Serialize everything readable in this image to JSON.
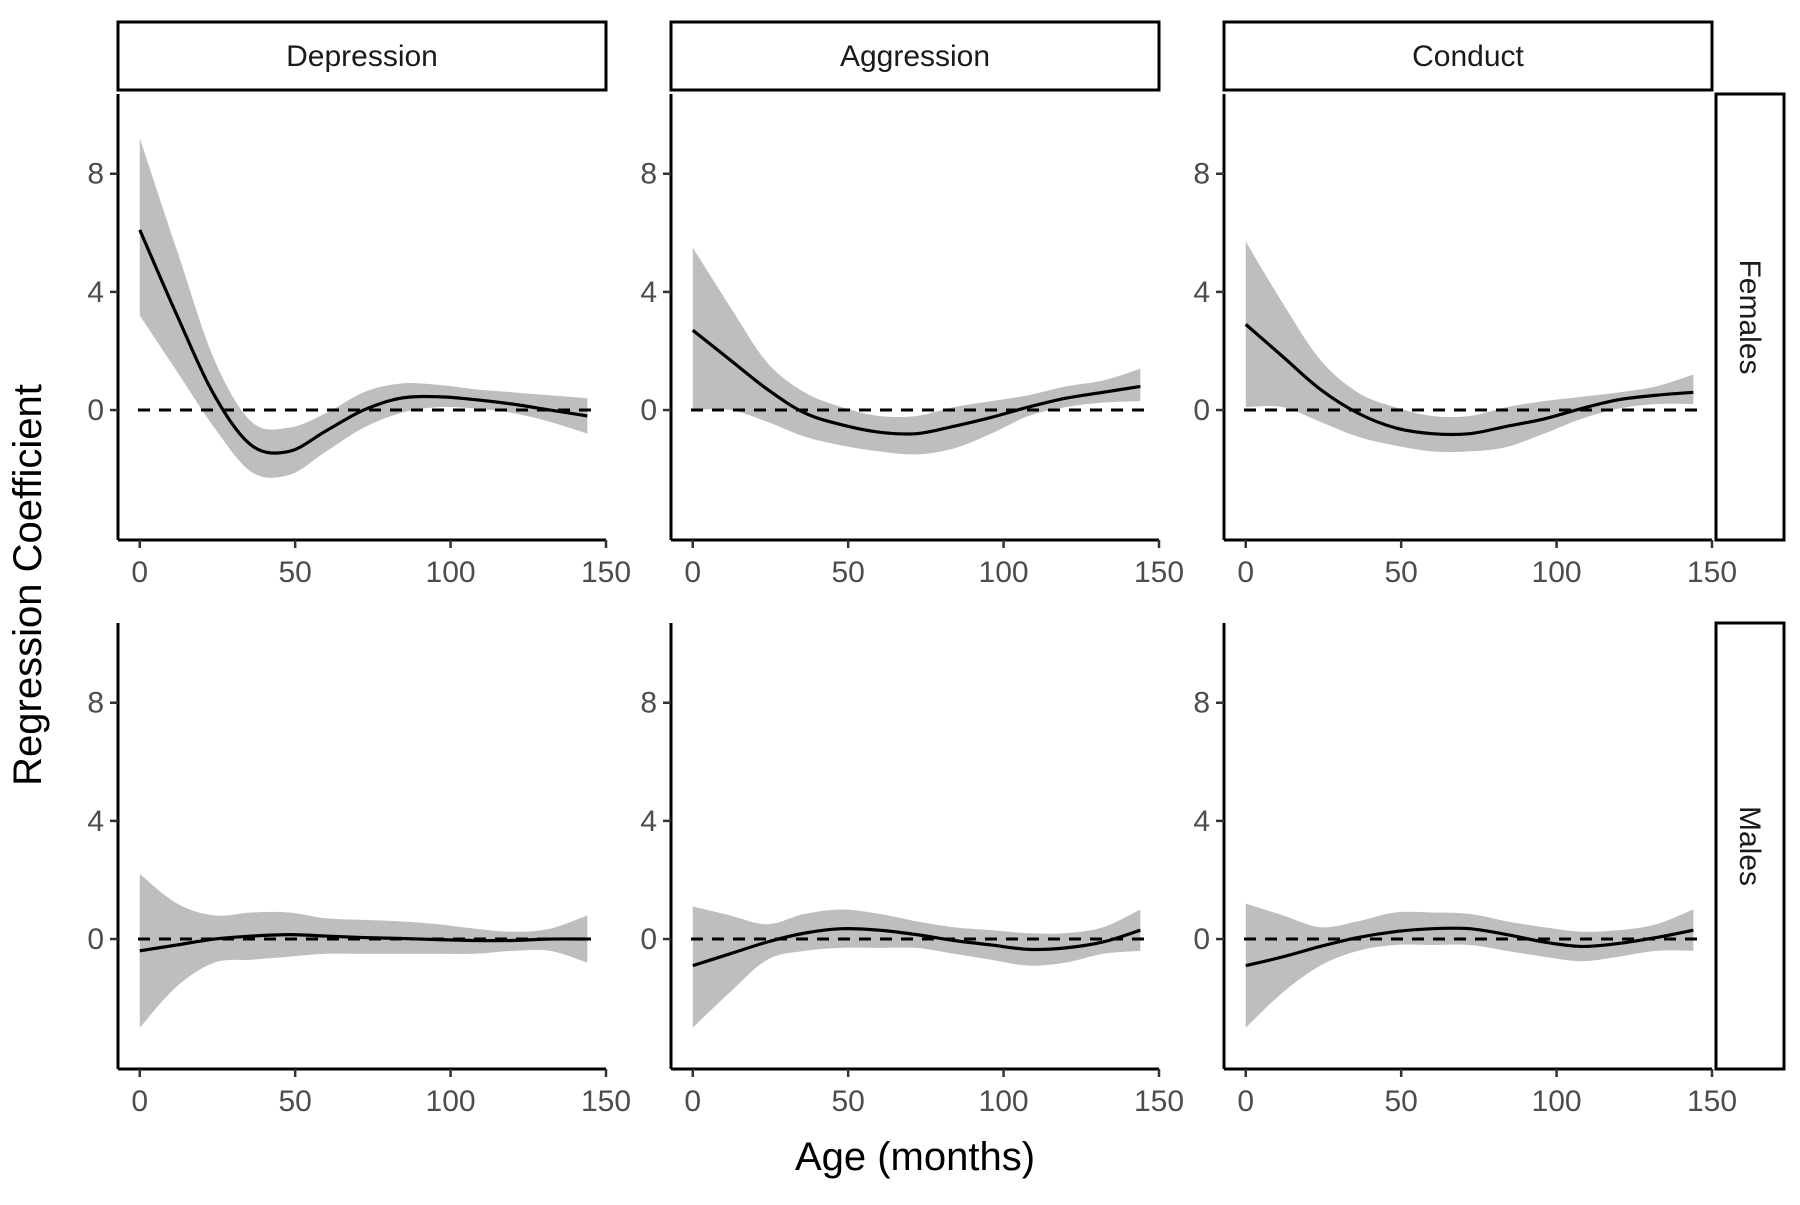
{
  "chart_data": {
    "type": "line",
    "layout": "facet-grid",
    "xlabel": "Age (months)",
    "ylabel": "Regression Coefficient",
    "xlim": [
      -7,
      150
    ],
    "ylim": [
      -4.4,
      10.7
    ],
    "x_ticks": [
      0,
      50,
      100,
      150
    ],
    "y_ticks": [
      0,
      4,
      8
    ],
    "reference_line": {
      "y": 0,
      "style": "dashed"
    },
    "grid": false,
    "columns": [
      "Depression",
      "Aggression",
      "Conduct"
    ],
    "rows": [
      "Females",
      "Males"
    ],
    "x": [
      0,
      12,
      24,
      36,
      48,
      60,
      72,
      84,
      96,
      108,
      120,
      132,
      144
    ],
    "colors": {
      "line": "#000000",
      "band": "#bebebe",
      "axis": "#000000"
    },
    "panels": [
      {
        "column": "Depression",
        "row": "Females",
        "fit": [
          6.1,
          3.2,
          0.5,
          -1.2,
          -1.4,
          -0.7,
          0.0,
          0.4,
          0.45,
          0.35,
          0.2,
          0.0,
          -0.2
        ],
        "lower": [
          3.2,
          1.3,
          -0.6,
          -2.1,
          -2.2,
          -1.4,
          -0.6,
          -0.1,
          0.1,
          0.05,
          -0.1,
          -0.4,
          -0.8
        ],
        "upper": [
          9.2,
          5.4,
          1.7,
          -0.4,
          -0.6,
          -0.1,
          0.6,
          0.9,
          0.85,
          0.7,
          0.6,
          0.5,
          0.4
        ]
      },
      {
        "column": "Aggression",
        "row": "Females",
        "fit": [
          2.7,
          1.7,
          0.7,
          -0.1,
          -0.5,
          -0.75,
          -0.8,
          -0.55,
          -0.25,
          0.1,
          0.4,
          0.6,
          0.8
        ],
        "lower": [
          0.0,
          0.0,
          -0.4,
          -0.9,
          -1.2,
          -1.4,
          -1.5,
          -1.3,
          -0.8,
          -0.2,
          0.1,
          0.25,
          0.3
        ],
        "upper": [
          5.5,
          3.5,
          1.6,
          0.6,
          0.1,
          -0.2,
          -0.2,
          0.1,
          0.3,
          0.5,
          0.8,
          1.0,
          1.4
        ]
      },
      {
        "column": "Conduct",
        "row": "Females",
        "fit": [
          2.9,
          1.8,
          0.7,
          -0.1,
          -0.6,
          -0.8,
          -0.8,
          -0.55,
          -0.3,
          0.05,
          0.35,
          0.5,
          0.6
        ],
        "lower": [
          0.1,
          0.1,
          -0.4,
          -0.9,
          -1.2,
          -1.4,
          -1.4,
          -1.25,
          -0.8,
          -0.3,
          0.05,
          0.2,
          0.2
        ],
        "upper": [
          5.7,
          3.6,
          1.7,
          0.6,
          0.1,
          -0.2,
          -0.2,
          0.1,
          0.3,
          0.45,
          0.6,
          0.8,
          1.2
        ]
      },
      {
        "column": "Depression",
        "row": "Males",
        "fit": [
          -0.4,
          -0.2,
          0.0,
          0.1,
          0.15,
          0.1,
          0.05,
          0.02,
          -0.02,
          -0.05,
          -0.05,
          0.0,
          0.0
        ],
        "lower": [
          -3.0,
          -1.6,
          -0.8,
          -0.7,
          -0.6,
          -0.5,
          -0.5,
          -0.5,
          -0.5,
          -0.5,
          -0.4,
          -0.4,
          -0.8
        ],
        "upper": [
          2.2,
          1.2,
          0.8,
          0.9,
          0.9,
          0.7,
          0.65,
          0.6,
          0.5,
          0.35,
          0.25,
          0.35,
          0.8
        ]
      },
      {
        "column": "Aggression",
        "row": "Males",
        "fit": [
          -0.9,
          -0.5,
          -0.1,
          0.2,
          0.35,
          0.3,
          0.15,
          -0.05,
          -0.2,
          -0.35,
          -0.3,
          -0.1,
          0.3
        ],
        "lower": [
          -3.0,
          -1.8,
          -0.7,
          -0.4,
          -0.3,
          -0.3,
          -0.3,
          -0.5,
          -0.7,
          -0.9,
          -0.8,
          -0.5,
          -0.4
        ],
        "upper": [
          1.1,
          0.8,
          0.5,
          0.85,
          1.0,
          0.85,
          0.6,
          0.4,
          0.3,
          0.2,
          0.2,
          0.4,
          1.0
        ]
      },
      {
        "column": "Conduct",
        "row": "Males",
        "fit": [
          -0.9,
          -0.6,
          -0.25,
          0.05,
          0.25,
          0.35,
          0.35,
          0.15,
          -0.1,
          -0.25,
          -0.15,
          0.05,
          0.3
        ],
        "lower": [
          -3.0,
          -1.8,
          -0.9,
          -0.4,
          -0.2,
          -0.2,
          -0.2,
          -0.4,
          -0.6,
          -0.75,
          -0.6,
          -0.4,
          -0.4
        ],
        "upper": [
          1.2,
          0.8,
          0.4,
          0.6,
          0.9,
          0.9,
          0.85,
          0.6,
          0.4,
          0.25,
          0.3,
          0.5,
          1.0
        ]
      }
    ]
  }
}
